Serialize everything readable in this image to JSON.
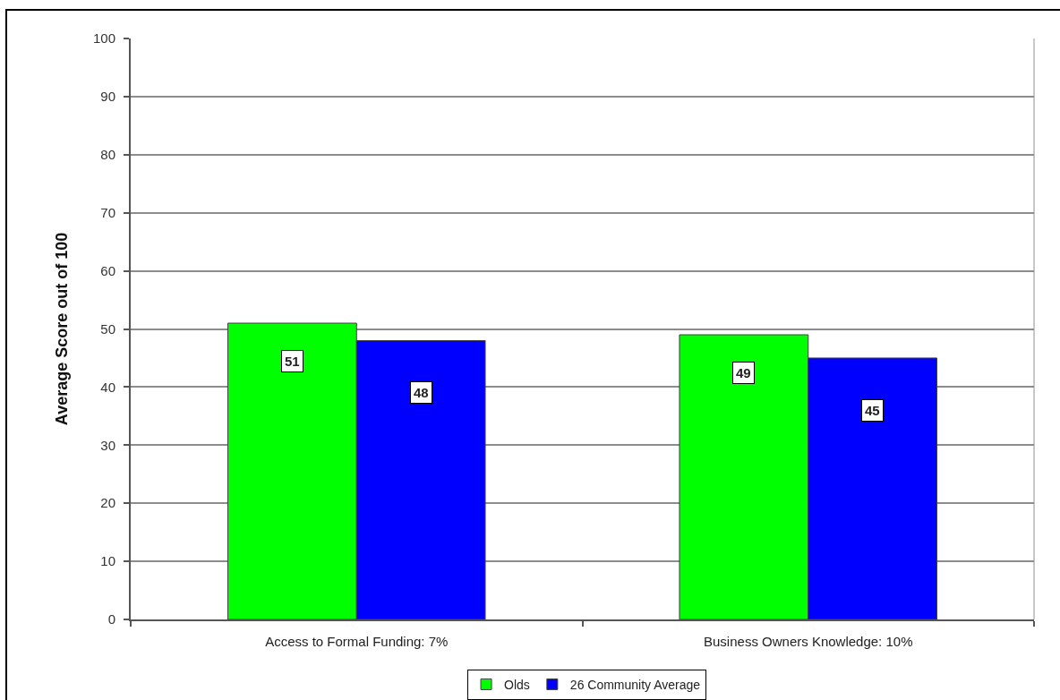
{
  "chart_data": {
    "type": "bar",
    "ylabel": "Average Score out of 100",
    "categories": [
      "Access to Formal Funding: 7%",
      "Business Owners Knowledge: 10%"
    ],
    "series": [
      {
        "name": "Olds",
        "color": "#00ff00",
        "values": [
          51,
          49
        ]
      },
      {
        "name": "26 Community Average",
        "color": "#0000ff",
        "values": [
          48,
          45
        ]
      }
    ],
    "ylim": [
      0,
      100
    ],
    "yticks": [
      0,
      10,
      20,
      30,
      40,
      50,
      60,
      70,
      80,
      90,
      100
    ],
    "grid": "y",
    "legend": "bottom",
    "data_labels": true
  }
}
